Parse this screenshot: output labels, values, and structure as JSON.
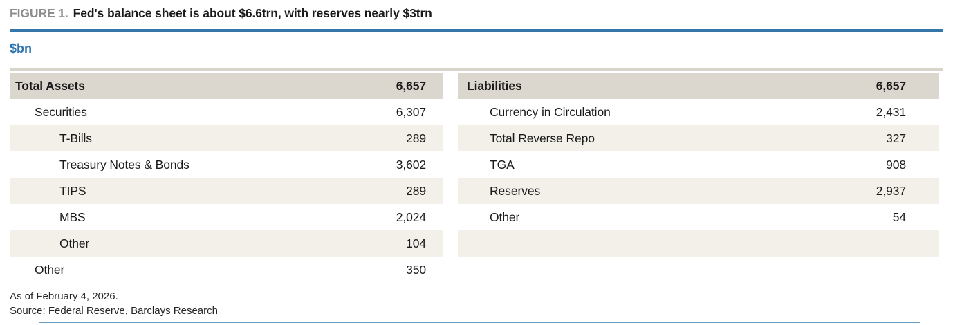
{
  "figure": {
    "label": "FIGURE 1.",
    "title": "Fed's balance sheet is about $6.6trn, with reserves nearly $3trn"
  },
  "unit_label": "$bn",
  "colors": {
    "accent_blue": "#3577a9",
    "unit_blue": "#2d74ae",
    "header_row_bg": "#dcd7ce",
    "stripe_row_bg": "#f3f0ea"
  },
  "balance_sheet": {
    "assets": {
      "header": {
        "label": "Total Assets",
        "value": "6,657"
      },
      "rows": [
        {
          "label": "Securities",
          "value": "6,307"
        },
        {
          "label": "T-Bills",
          "value": "289"
        },
        {
          "label": "Treasury Notes & Bonds",
          "value": "3,602"
        },
        {
          "label": "TIPS",
          "value": "289"
        },
        {
          "label": "MBS",
          "value": "2,024"
        },
        {
          "label": "Other",
          "value": "104"
        },
        {
          "label": "Other",
          "value": "350"
        }
      ]
    },
    "liabilities": {
      "header": {
        "label": "Liabilities",
        "value": "6,657"
      },
      "rows": [
        {
          "label": "Currency in Circulation",
          "value": "2,431"
        },
        {
          "label": "Total Reverse Repo",
          "value": "327"
        },
        {
          "label": "TGA",
          "value": "908"
        },
        {
          "label": "Reserves",
          "value": "2,937"
        },
        {
          "label": "Other",
          "value": "54"
        },
        {
          "label": "",
          "value": ""
        },
        {
          "label": "",
          "value": ""
        }
      ]
    }
  },
  "footnotes": {
    "as_of": "As of February 4, 2026.",
    "source": "Source: Federal Reserve, Barclays Research"
  }
}
